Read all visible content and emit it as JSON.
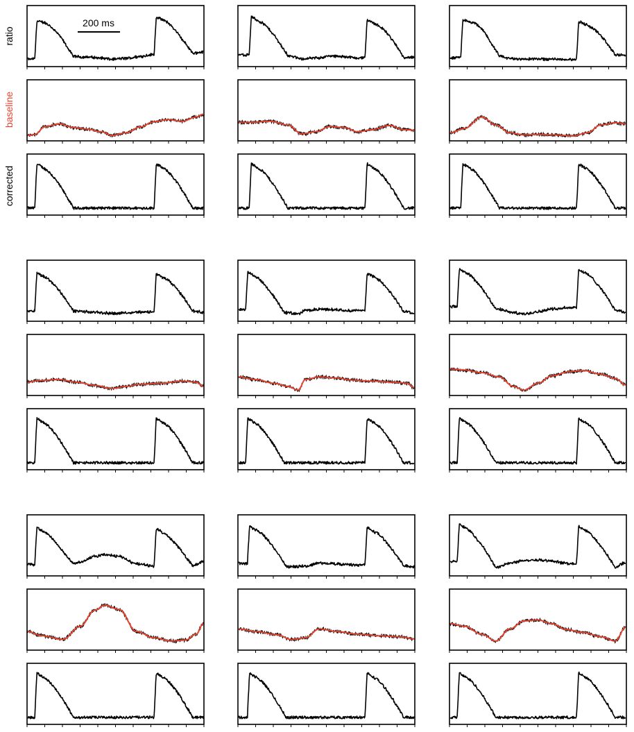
{
  "labels": {
    "ratio": "ratio",
    "baseline": "baseline",
    "corrected": "corrected",
    "scale_bar": "200 ms"
  },
  "colors": {
    "trace": "#000000",
    "baseline_fit": "#e8432e",
    "baseline_label": "#e8432e",
    "frame": "#000000",
    "background": "#ffffff"
  },
  "chart_data": {
    "type": "line",
    "description_units": "relative signal (0-1), time in ms",
    "time_axis_ms": [
      0,
      1000
    ],
    "scale_bar_ms": 200,
    "row_labels": [
      "ratio",
      "baseline",
      "corrected"
    ],
    "groups": [
      {
        "examples": [
          {
            "ratio_baseline": [
              [
                0,
                0.05
              ],
              [
                40,
                0.07
              ],
              [
                100,
                0.22
              ],
              [
                180,
                0.27
              ],
              [
                260,
                0.2
              ],
              [
                340,
                0.17
              ],
              [
                420,
                0.12
              ],
              [
                480,
                0.05
              ],
              [
                560,
                0.1
              ],
              [
                640,
                0.21
              ],
              [
                720,
                0.31
              ],
              [
                800,
                0.35
              ],
              [
                880,
                0.32
              ],
              [
                960,
                0.4
              ],
              [
                1000,
                0.45
              ]
            ],
            "baseline_fit": [
              [
                0,
                0.05
              ],
              [
                40,
                0.07
              ],
              [
                100,
                0.22
              ],
              [
                180,
                0.27
              ],
              [
                260,
                0.2
              ],
              [
                340,
                0.17
              ],
              [
                420,
                0.12
              ],
              [
                480,
                0.05
              ],
              [
                560,
                0.1
              ],
              [
                640,
                0.21
              ],
              [
                720,
                0.31
              ],
              [
                800,
                0.35
              ],
              [
                880,
                0.32
              ],
              [
                960,
                0.4
              ],
              [
                1000,
                0.45
              ]
            ]
          },
          {
            "ratio_baseline": [
              [
                0,
                0.3
              ],
              [
                80,
                0.3
              ],
              [
                180,
                0.32
              ],
              [
                280,
                0.25
              ],
              [
                360,
                0.08
              ],
              [
                440,
                0.12
              ],
              [
                520,
                0.22
              ],
              [
                600,
                0.2
              ],
              [
                680,
                0.12
              ],
              [
                760,
                0.16
              ],
              [
                860,
                0.24
              ],
              [
                940,
                0.16
              ],
              [
                1000,
                0.15
              ]
            ],
            "baseline_fit": [
              [
                0,
                0.3
              ],
              [
                80,
                0.3
              ],
              [
                180,
                0.32
              ],
              [
                280,
                0.25
              ],
              [
                360,
                0.08
              ],
              [
                440,
                0.12
              ],
              [
                520,
                0.22
              ],
              [
                600,
                0.2
              ],
              [
                680,
                0.12
              ],
              [
                760,
                0.16
              ],
              [
                860,
                0.24
              ],
              [
                940,
                0.16
              ],
              [
                1000,
                0.15
              ]
            ]
          },
          {
            "ratio_baseline": [
              [
                0,
                0.1
              ],
              [
                80,
                0.18
              ],
              [
                180,
                0.4
              ],
              [
                260,
                0.25
              ],
              [
                340,
                0.1
              ],
              [
                420,
                0.06
              ],
              [
                500,
                0.07
              ],
              [
                600,
                0.06
              ],
              [
                700,
                0.04
              ],
              [
                780,
                0.1
              ],
              [
                860,
                0.25
              ],
              [
                940,
                0.29
              ],
              [
                1000,
                0.27
              ]
            ],
            "baseline_fit": [
              [
                0,
                0.1
              ],
              [
                80,
                0.18
              ],
              [
                180,
                0.4
              ],
              [
                260,
                0.25
              ],
              [
                340,
                0.1
              ],
              [
                420,
                0.06
              ],
              [
                500,
                0.07
              ],
              [
                600,
                0.06
              ],
              [
                700,
                0.04
              ],
              [
                780,
                0.1
              ],
              [
                860,
                0.25
              ],
              [
                940,
                0.29
              ],
              [
                1000,
                0.27
              ]
            ]
          }
        ]
      },
      {
        "examples": [
          {
            "ratio_baseline": [
              [
                0,
                0.2
              ],
              [
                60,
                0.23
              ],
              [
                180,
                0.25
              ],
              [
                280,
                0.2
              ],
              [
                380,
                0.14
              ],
              [
                480,
                0.08
              ],
              [
                560,
                0.12
              ],
              [
                640,
                0.16
              ],
              [
                760,
                0.18
              ],
              [
                880,
                0.22
              ],
              [
                960,
                0.2
              ],
              [
                1000,
                0.12
              ]
            ],
            "baseline_fit": [
              [
                0,
                0.2
              ],
              [
                60,
                0.23
              ],
              [
                180,
                0.25
              ],
              [
                280,
                0.2
              ],
              [
                380,
                0.14
              ],
              [
                480,
                0.08
              ],
              [
                560,
                0.12
              ],
              [
                640,
                0.16
              ],
              [
                760,
                0.18
              ],
              [
                880,
                0.22
              ],
              [
                960,
                0.2
              ],
              [
                1000,
                0.12
              ]
            ]
          },
          {
            "ratio_baseline": [
              [
                0,
                0.3
              ],
              [
                100,
                0.25
              ],
              [
                200,
                0.18
              ],
              [
                280,
                0.12
              ],
              [
                340,
                0.05
              ],
              [
                380,
                0.25
              ],
              [
                460,
                0.3
              ],
              [
                560,
                0.28
              ],
              [
                640,
                0.24
              ],
              [
                760,
                0.22
              ],
              [
                880,
                0.2
              ],
              [
                960,
                0.18
              ],
              [
                1000,
                0.1
              ]
            ],
            "baseline_fit": [
              [
                0,
                0.3
              ],
              [
                100,
                0.25
              ],
              [
                200,
                0.18
              ],
              [
                280,
                0.12
              ],
              [
                340,
                0.05
              ],
              [
                380,
                0.25
              ],
              [
                460,
                0.3
              ],
              [
                560,
                0.28
              ],
              [
                640,
                0.24
              ],
              [
                760,
                0.22
              ],
              [
                880,
                0.2
              ],
              [
                960,
                0.18
              ],
              [
                1000,
                0.1
              ]
            ]
          },
          {
            "ratio_baseline": [
              [
                0,
                0.45
              ],
              [
                80,
                0.43
              ],
              [
                180,
                0.38
              ],
              [
                280,
                0.3
              ],
              [
                360,
                0.12
              ],
              [
                420,
                0.05
              ],
              [
                500,
                0.18
              ],
              [
                580,
                0.32
              ],
              [
                680,
                0.4
              ],
              [
                760,
                0.42
              ],
              [
                860,
                0.35
              ],
              [
                940,
                0.27
              ],
              [
                1000,
                0.15
              ]
            ],
            "baseline_fit": [
              [
                0,
                0.45
              ],
              [
                80,
                0.43
              ],
              [
                180,
                0.38
              ],
              [
                280,
                0.3
              ],
              [
                360,
                0.12
              ],
              [
                420,
                0.05
              ],
              [
                500,
                0.18
              ],
              [
                580,
                0.32
              ],
              [
                680,
                0.4
              ],
              [
                760,
                0.42
              ],
              [
                860,
                0.35
              ],
              [
                940,
                0.27
              ],
              [
                1000,
                0.15
              ]
            ]
          }
        ]
      },
      {
        "examples": [
          {
            "ratio_baseline": [
              [
                0,
                0.3
              ],
              [
                80,
                0.22
              ],
              [
                200,
                0.15
              ],
              [
                300,
                0.4
              ],
              [
                380,
                0.7
              ],
              [
                440,
                0.8
              ],
              [
                520,
                0.72
              ],
              [
                620,
                0.3
              ],
              [
                720,
                0.18
              ],
              [
                820,
                0.12
              ],
              [
                900,
                0.14
              ],
              [
                960,
                0.25
              ],
              [
                1000,
                0.45
              ]
            ],
            "baseline_fit": [
              [
                0,
                0.3
              ],
              [
                80,
                0.22
              ],
              [
                200,
                0.15
              ],
              [
                300,
                0.4
              ],
              [
                380,
                0.7
              ],
              [
                440,
                0.8
              ],
              [
                520,
                0.72
              ],
              [
                620,
                0.3
              ],
              [
                720,
                0.18
              ],
              [
                820,
                0.12
              ],
              [
                900,
                0.14
              ],
              [
                960,
                0.25
              ],
              [
                1000,
                0.45
              ]
            ]
          },
          {
            "ratio_baseline": [
              [
                0,
                0.35
              ],
              [
                100,
                0.3
              ],
              [
                220,
                0.24
              ],
              [
                300,
                0.15
              ],
              [
                380,
                0.18
              ],
              [
                460,
                0.35
              ],
              [
                560,
                0.3
              ],
              [
                680,
                0.25
              ],
              [
                800,
                0.22
              ],
              [
                920,
                0.2
              ],
              [
                1000,
                0.16
              ]
            ],
            "baseline_fit": [
              [
                0,
                0.35
              ],
              [
                100,
                0.3
              ],
              [
                220,
                0.24
              ],
              [
                300,
                0.15
              ],
              [
                380,
                0.18
              ],
              [
                460,
                0.35
              ],
              [
                560,
                0.3
              ],
              [
                680,
                0.25
              ],
              [
                800,
                0.22
              ],
              [
                920,
                0.2
              ],
              [
                1000,
                0.16
              ]
            ]
          },
          {
            "ratio_baseline": [
              [
                0,
                0.45
              ],
              [
                80,
                0.4
              ],
              [
                180,
                0.25
              ],
              [
                260,
                0.12
              ],
              [
                340,
                0.35
              ],
              [
                420,
                0.5
              ],
              [
                500,
                0.52
              ],
              [
                580,
                0.45
              ],
              [
                660,
                0.34
              ],
              [
                760,
                0.28
              ],
              [
                860,
                0.2
              ],
              [
                940,
                0.12
              ],
              [
                1000,
                0.38
              ]
            ],
            "baseline_fit": [
              [
                0,
                0.45
              ],
              [
                80,
                0.4
              ],
              [
                180,
                0.25
              ],
              [
                260,
                0.12
              ],
              [
                340,
                0.35
              ],
              [
                420,
                0.5
              ],
              [
                500,
                0.52
              ],
              [
                580,
                0.45
              ],
              [
                660,
                0.34
              ],
              [
                760,
                0.28
              ],
              [
                860,
                0.2
              ],
              [
                940,
                0.12
              ],
              [
                1000,
                0.38
              ]
            ]
          }
        ]
      }
    ],
    "corrected_shape": {
      "comment": "Transient waveform (baseline removed), two transients per trace",
      "transient_onsets_ms": [
        [
          40,
          720
        ],
        [
          60,
          720
        ],
        [
          60,
          720
        ],
        [
          40,
          720
        ],
        [
          40,
          720
        ],
        [
          40,
          720
        ],
        [
          40,
          720
        ],
        [
          50,
          720
        ],
        [
          40,
          720
        ]
      ],
      "upstroke_peak": 0.92,
      "plateau_level": 0.75,
      "decay_end_ms_after_onset": 220,
      "rest_level": 0.08,
      "noise": 0.025
    },
    "ratio_shape": {
      "comment": "ratio = corrected transient + baseline drift",
      "upstroke_peak": 0.92,
      "rest_level": 0.08
    }
  }
}
